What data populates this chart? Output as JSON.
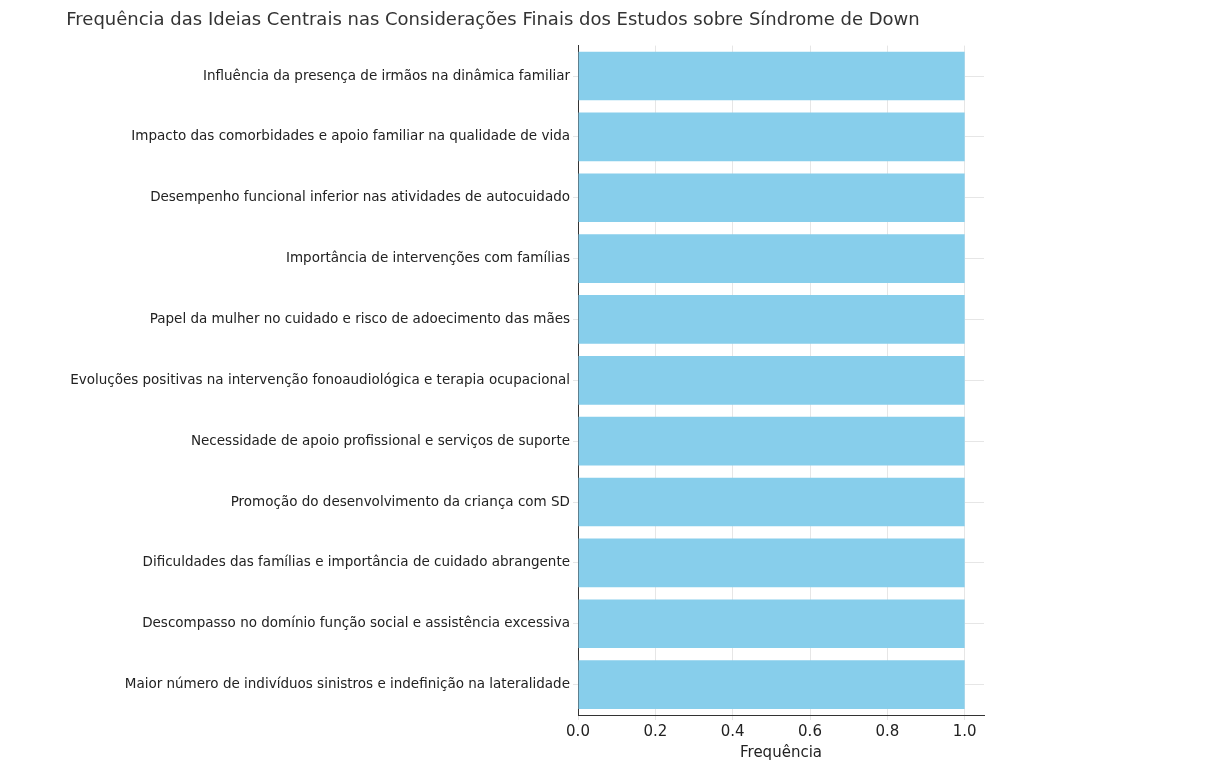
{
  "chart_data": {
    "type": "bar",
    "orientation": "horizontal",
    "title": "Frequência das Ideias Centrais nas Considerações Finais dos Estudos sobre Síndrome de Down",
    "xlabel": "Frequência",
    "categories": [
      "Influência da presença de irmãos na dinâmica familiar",
      "Impacto das comorbidades e apoio familiar na qualidade de vida",
      "Desempenho funcional inferior nas atividades de autocuidado",
      "Importância de intervenções com famílias",
      "Papel da mulher no cuidado e risco de adoecimento das mães",
      "Evoluções positivas na intervenção fonoaudiológica e terapia ocupacional",
      "Necessidade de apoio profissional e serviços de suporte",
      "Promoção do desenvolvimento da criança com SD",
      "Dificuldades das famílias e importância de cuidado abrangente",
      "Descompasso no domínio função social e assistência excessiva",
      "Maior número de indivíduos sinistros e indefinição na lateralidade"
    ],
    "values": [
      1,
      1,
      1,
      1,
      1,
      1,
      1,
      1,
      1,
      1,
      1
    ],
    "color": "#87ceeb",
    "xlim": [
      0,
      1.05
    ],
    "xticks": [
      {
        "value": 0,
        "label": "0.0"
      },
      {
        "value": 0.2,
        "label": "0.2"
      },
      {
        "value": 0.4,
        "label": "0.4"
      },
      {
        "value": 0.6,
        "label": "0.6"
      },
      {
        "value": 0.8,
        "label": "0.8"
      },
      {
        "value": 1,
        "label": "1.0"
      }
    ],
    "grid": true
  }
}
